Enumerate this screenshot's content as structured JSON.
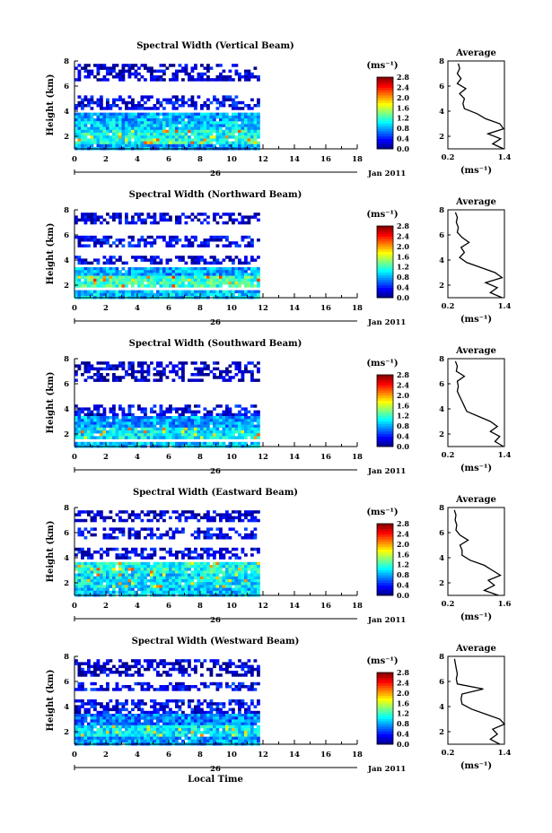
{
  "chart_data": [
    {
      "type": "heatmap",
      "title": "Spectral Width (Vertical Beam)",
      "xlabel": "",
      "ylabel": "Height (km)",
      "xlim": [
        0,
        18
      ],
      "ylim": [
        1,
        8
      ],
      "x_ticks": [
        "0",
        "2",
        "4",
        "6",
        "8",
        "10",
        "12",
        "14",
        "16",
        "18"
      ],
      "y_ticks": [
        "2",
        "4",
        "6",
        "8"
      ],
      "date_center": "26",
      "date_right": "Jan 2011",
      "data_end_hour": 11.8,
      "layers": [
        {
          "y": [
            1,
            1.6
          ],
          "level": 0.8
        },
        {
          "y": [
            1.6,
            2.6
          ],
          "level": 1.1
        },
        {
          "y": [
            2.6,
            3.3
          ],
          "level": 0.9
        },
        {
          "y": [
            3.3,
            4.0
          ],
          "level": 0.8
        },
        {
          "y": [
            4.3,
            5.4
          ],
          "level": 0.3
        },
        {
          "y": [
            6.6,
            8.0
          ],
          "level": 0.2
        }
      ],
      "colorbar": {
        "unit": "(ms⁻¹)",
        "ticks": [
          "2.8",
          "2.4",
          "2.0",
          "1.6",
          "1.2",
          "0.8",
          "0.4",
          "0.0"
        ],
        "range": [
          0.0,
          2.8
        ]
      },
      "average": {
        "title": "Average",
        "unit": "(ms⁻¹)",
        "xlim": [
          0.2,
          1.4
        ],
        "x_ticks": [
          "0.2",
          "1.4"
        ],
        "y_ticks": [
          "2",
          "4",
          "6",
          "8"
        ],
        "heights": [
          1.0,
          1.4,
          1.8,
          2.2,
          2.6,
          3.0,
          3.4,
          3.8,
          4.2,
          4.6,
          5.0,
          5.4,
          5.8,
          6.2,
          6.6,
          7.0,
          7.4,
          7.8
        ],
        "values": [
          1.38,
          1.15,
          1.32,
          1.05,
          1.38,
          1.3,
          1.0,
          0.82,
          0.55,
          0.52,
          0.55,
          0.45,
          0.58,
          0.4,
          0.48,
          0.4,
          0.45,
          0.42
        ]
      }
    },
    {
      "type": "heatmap",
      "title": "Spectral Width (Northward Beam)",
      "xlabel": "",
      "ylabel": "Height (km)",
      "xlim": [
        0,
        18
      ],
      "ylim": [
        1,
        8
      ],
      "x_ticks": [
        "0",
        "2",
        "4",
        "6",
        "8",
        "10",
        "12",
        "14",
        "16",
        "18"
      ],
      "y_ticks": [
        "2",
        "4",
        "6",
        "8"
      ],
      "date_center": "26",
      "date_right": "Jan 2011",
      "data_end_hour": 11.8,
      "layers": [
        {
          "y": [
            1,
            1.8
          ],
          "level": 0.9
        },
        {
          "y": [
            2.0,
            2.8
          ],
          "level": 1.2
        },
        {
          "y": [
            2.8,
            3.6
          ],
          "level": 0.8
        },
        {
          "y": [
            3.8,
            4.4
          ],
          "level": 0.3
        },
        {
          "y": [
            5.2,
            6.0
          ],
          "level": 0.3
        },
        {
          "y": [
            7.0,
            8.0
          ],
          "level": 0.2
        }
      ],
      "colorbar": {
        "unit": "(ms⁻¹)",
        "ticks": [
          "2.8",
          "2.4",
          "2.0",
          "1.6",
          "1.2",
          "0.8",
          "0.4",
          "0.0"
        ],
        "range": [
          0.0,
          2.8
        ]
      },
      "average": {
        "title": "Average",
        "unit": "(ms⁻¹)",
        "xlim": [
          0.2,
          1.4
        ],
        "x_ticks": [
          "0.2",
          "1.4"
        ],
        "y_ticks": [
          "2",
          "4",
          "6",
          "8"
        ],
        "heights": [
          1.0,
          1.4,
          1.8,
          2.2,
          2.6,
          3.0,
          3.4,
          3.8,
          4.2,
          4.6,
          5.0,
          5.4,
          5.8,
          6.2,
          6.6,
          7.0,
          7.4,
          7.8
        ],
        "values": [
          1.35,
          1.1,
          1.25,
          1.0,
          1.35,
          1.2,
          0.9,
          0.6,
          0.45,
          0.55,
          0.48,
          0.65,
          0.5,
          0.4,
          0.42,
          0.38,
          0.4,
          0.36
        ]
      }
    },
    {
      "type": "heatmap",
      "title": "Spectral Width (Southward Beam)",
      "xlabel": "",
      "ylabel": "Height (km)",
      "xlim": [
        0,
        18
      ],
      "ylim": [
        1,
        8
      ],
      "x_ticks": [
        "0",
        "2",
        "4",
        "6",
        "8",
        "10",
        "12",
        "14",
        "16",
        "18"
      ],
      "y_ticks": [
        "2",
        "4",
        "6",
        "8"
      ],
      "date_center": "26",
      "date_right": "Jan 2011",
      "data_end_hour": 11.8,
      "layers": [
        {
          "y": [
            1,
            1.6
          ],
          "level": 0.9
        },
        {
          "y": [
            1.8,
            2.6
          ],
          "level": 1.0
        },
        {
          "y": [
            2.6,
            3.6
          ],
          "level": 0.8
        },
        {
          "y": [
            3.6,
            4.4
          ],
          "level": 0.3
        },
        {
          "y": [
            6.2,
            8.0
          ],
          "level": 0.2
        }
      ],
      "colorbar": {
        "unit": "(ms⁻¹)",
        "ticks": [
          "2.8",
          "2.4",
          "2.0",
          "1.6",
          "1.2",
          "0.8",
          "0.4",
          "0.0"
        ],
        "range": [
          0.0,
          2.8
        ]
      },
      "average": {
        "title": "Average",
        "unit": "(ms⁻¹)",
        "xlim": [
          0.2,
          1.4
        ],
        "x_ticks": [
          "0.2",
          "1.4"
        ],
        "y_ticks": [
          "2",
          "4",
          "6",
          "8"
        ],
        "heights": [
          1.0,
          1.4,
          1.8,
          2.2,
          2.6,
          3.0,
          3.4,
          3.8,
          4.2,
          4.6,
          5.0,
          5.4,
          5.8,
          6.2,
          6.6,
          7.0,
          7.4,
          7.8
        ],
        "values": [
          1.38,
          1.2,
          1.3,
          1.1,
          1.25,
          1.1,
          0.85,
          0.6,
          0.55,
          0.5,
          0.45,
          0.4,
          0.42,
          0.4,
          0.55,
          0.38,
          0.4,
          0.36
        ]
      }
    },
    {
      "type": "heatmap",
      "title": "Spectral Width (Eastward Beam)",
      "xlabel": "",
      "ylabel": "Height (km)",
      "xlim": [
        0,
        18
      ],
      "ylim": [
        1,
        8
      ],
      "x_ticks": [
        "0",
        "2",
        "4",
        "6",
        "8",
        "10",
        "12",
        "14",
        "16",
        "18"
      ],
      "y_ticks": [
        "2",
        "4",
        "6",
        "8"
      ],
      "date_center": "26",
      "date_right": "Jan 2011",
      "data_end_hour": 11.8,
      "layers": [
        {
          "y": [
            1,
            1.8
          ],
          "level": 0.9
        },
        {
          "y": [
            1.8,
            2.8
          ],
          "level": 1.0
        },
        {
          "y": [
            2.8,
            3.8
          ],
          "level": 1.1
        },
        {
          "y": [
            4.0,
            4.8
          ],
          "level": 0.3
        },
        {
          "y": [
            5.6,
            6.4
          ],
          "level": 0.3
        },
        {
          "y": [
            7.0,
            8.0
          ],
          "level": 0.2
        }
      ],
      "colorbar": {
        "unit": "(ms⁻¹)",
        "ticks": [
          "2.8",
          "2.4",
          "2.0",
          "1.6",
          "1.2",
          "0.8",
          "0.4",
          "0.0"
        ],
        "range": [
          0.0,
          2.8
        ]
      },
      "average": {
        "title": "Average",
        "unit": "(ms⁻¹)",
        "xlim": [
          0.2,
          1.6
        ],
        "x_ticks": [
          "0.2",
          "1.6"
        ],
        "y_ticks": [
          "2",
          "4",
          "6",
          "8"
        ],
        "heights": [
          1.0,
          1.4,
          1.8,
          2.2,
          2.6,
          3.0,
          3.4,
          3.8,
          4.2,
          4.6,
          5.0,
          5.4,
          5.8,
          6.2,
          6.6,
          7.0,
          7.4,
          7.8
        ],
        "values": [
          1.45,
          1.1,
          1.35,
          1.2,
          1.5,
          1.3,
          1.1,
          0.75,
          0.55,
          0.55,
          0.5,
          0.7,
          0.5,
          0.4,
          0.42,
          0.38,
          0.4,
          0.36
        ]
      }
    },
    {
      "type": "heatmap",
      "title": "Spectral Width (Westward Beam)",
      "xlabel": "Local Time",
      "ylabel": "Height (km)",
      "xlim": [
        0,
        18
      ],
      "ylim": [
        1,
        8
      ],
      "x_ticks": [
        "0",
        "2",
        "4",
        "6",
        "8",
        "10",
        "12",
        "14",
        "16",
        "18"
      ],
      "y_ticks": [
        "2",
        "4",
        "6",
        "8"
      ],
      "date_center": "26",
      "date_right": "Jan 2011",
      "data_end_hour": 11.8,
      "layers": [
        {
          "y": [
            1,
            1.6
          ],
          "level": 0.8
        },
        {
          "y": [
            1.8,
            2.6
          ],
          "level": 1.0
        },
        {
          "y": [
            2.6,
            3.6
          ],
          "level": 0.7
        },
        {
          "y": [
            3.6,
            4.6
          ],
          "level": 0.3
        },
        {
          "y": [
            5.4,
            6.0
          ],
          "level": 0.3
        },
        {
          "y": [
            6.6,
            8.0
          ],
          "level": 0.2
        }
      ],
      "colorbar": {
        "unit": "(ms⁻¹)",
        "ticks": [
          "2.8",
          "2.4",
          "2.0",
          "1.6",
          "1.2",
          "0.8",
          "0.4",
          "0.0"
        ],
        "range": [
          0.0,
          2.8
        ]
      },
      "average": {
        "title": "Average",
        "unit": "(ms⁻¹)",
        "xlim": [
          0.2,
          1.4
        ],
        "x_ticks": [
          "0.2",
          "1.4"
        ],
        "y_ticks": [
          "2",
          "4",
          "6",
          "8"
        ],
        "heights": [
          1.0,
          1.4,
          1.8,
          2.2,
          2.6,
          3.0,
          3.4,
          3.8,
          4.2,
          4.6,
          5.0,
          5.4,
          5.8,
          6.2,
          6.6,
          7.0,
          7.4,
          7.8
        ],
        "values": [
          1.3,
          1.1,
          1.25,
          1.15,
          1.4,
          1.3,
          1.0,
          0.7,
          0.5,
          0.48,
          0.5,
          0.95,
          0.4,
          0.38,
          0.4,
          0.38,
          0.36,
          0.34
        ]
      }
    }
  ]
}
